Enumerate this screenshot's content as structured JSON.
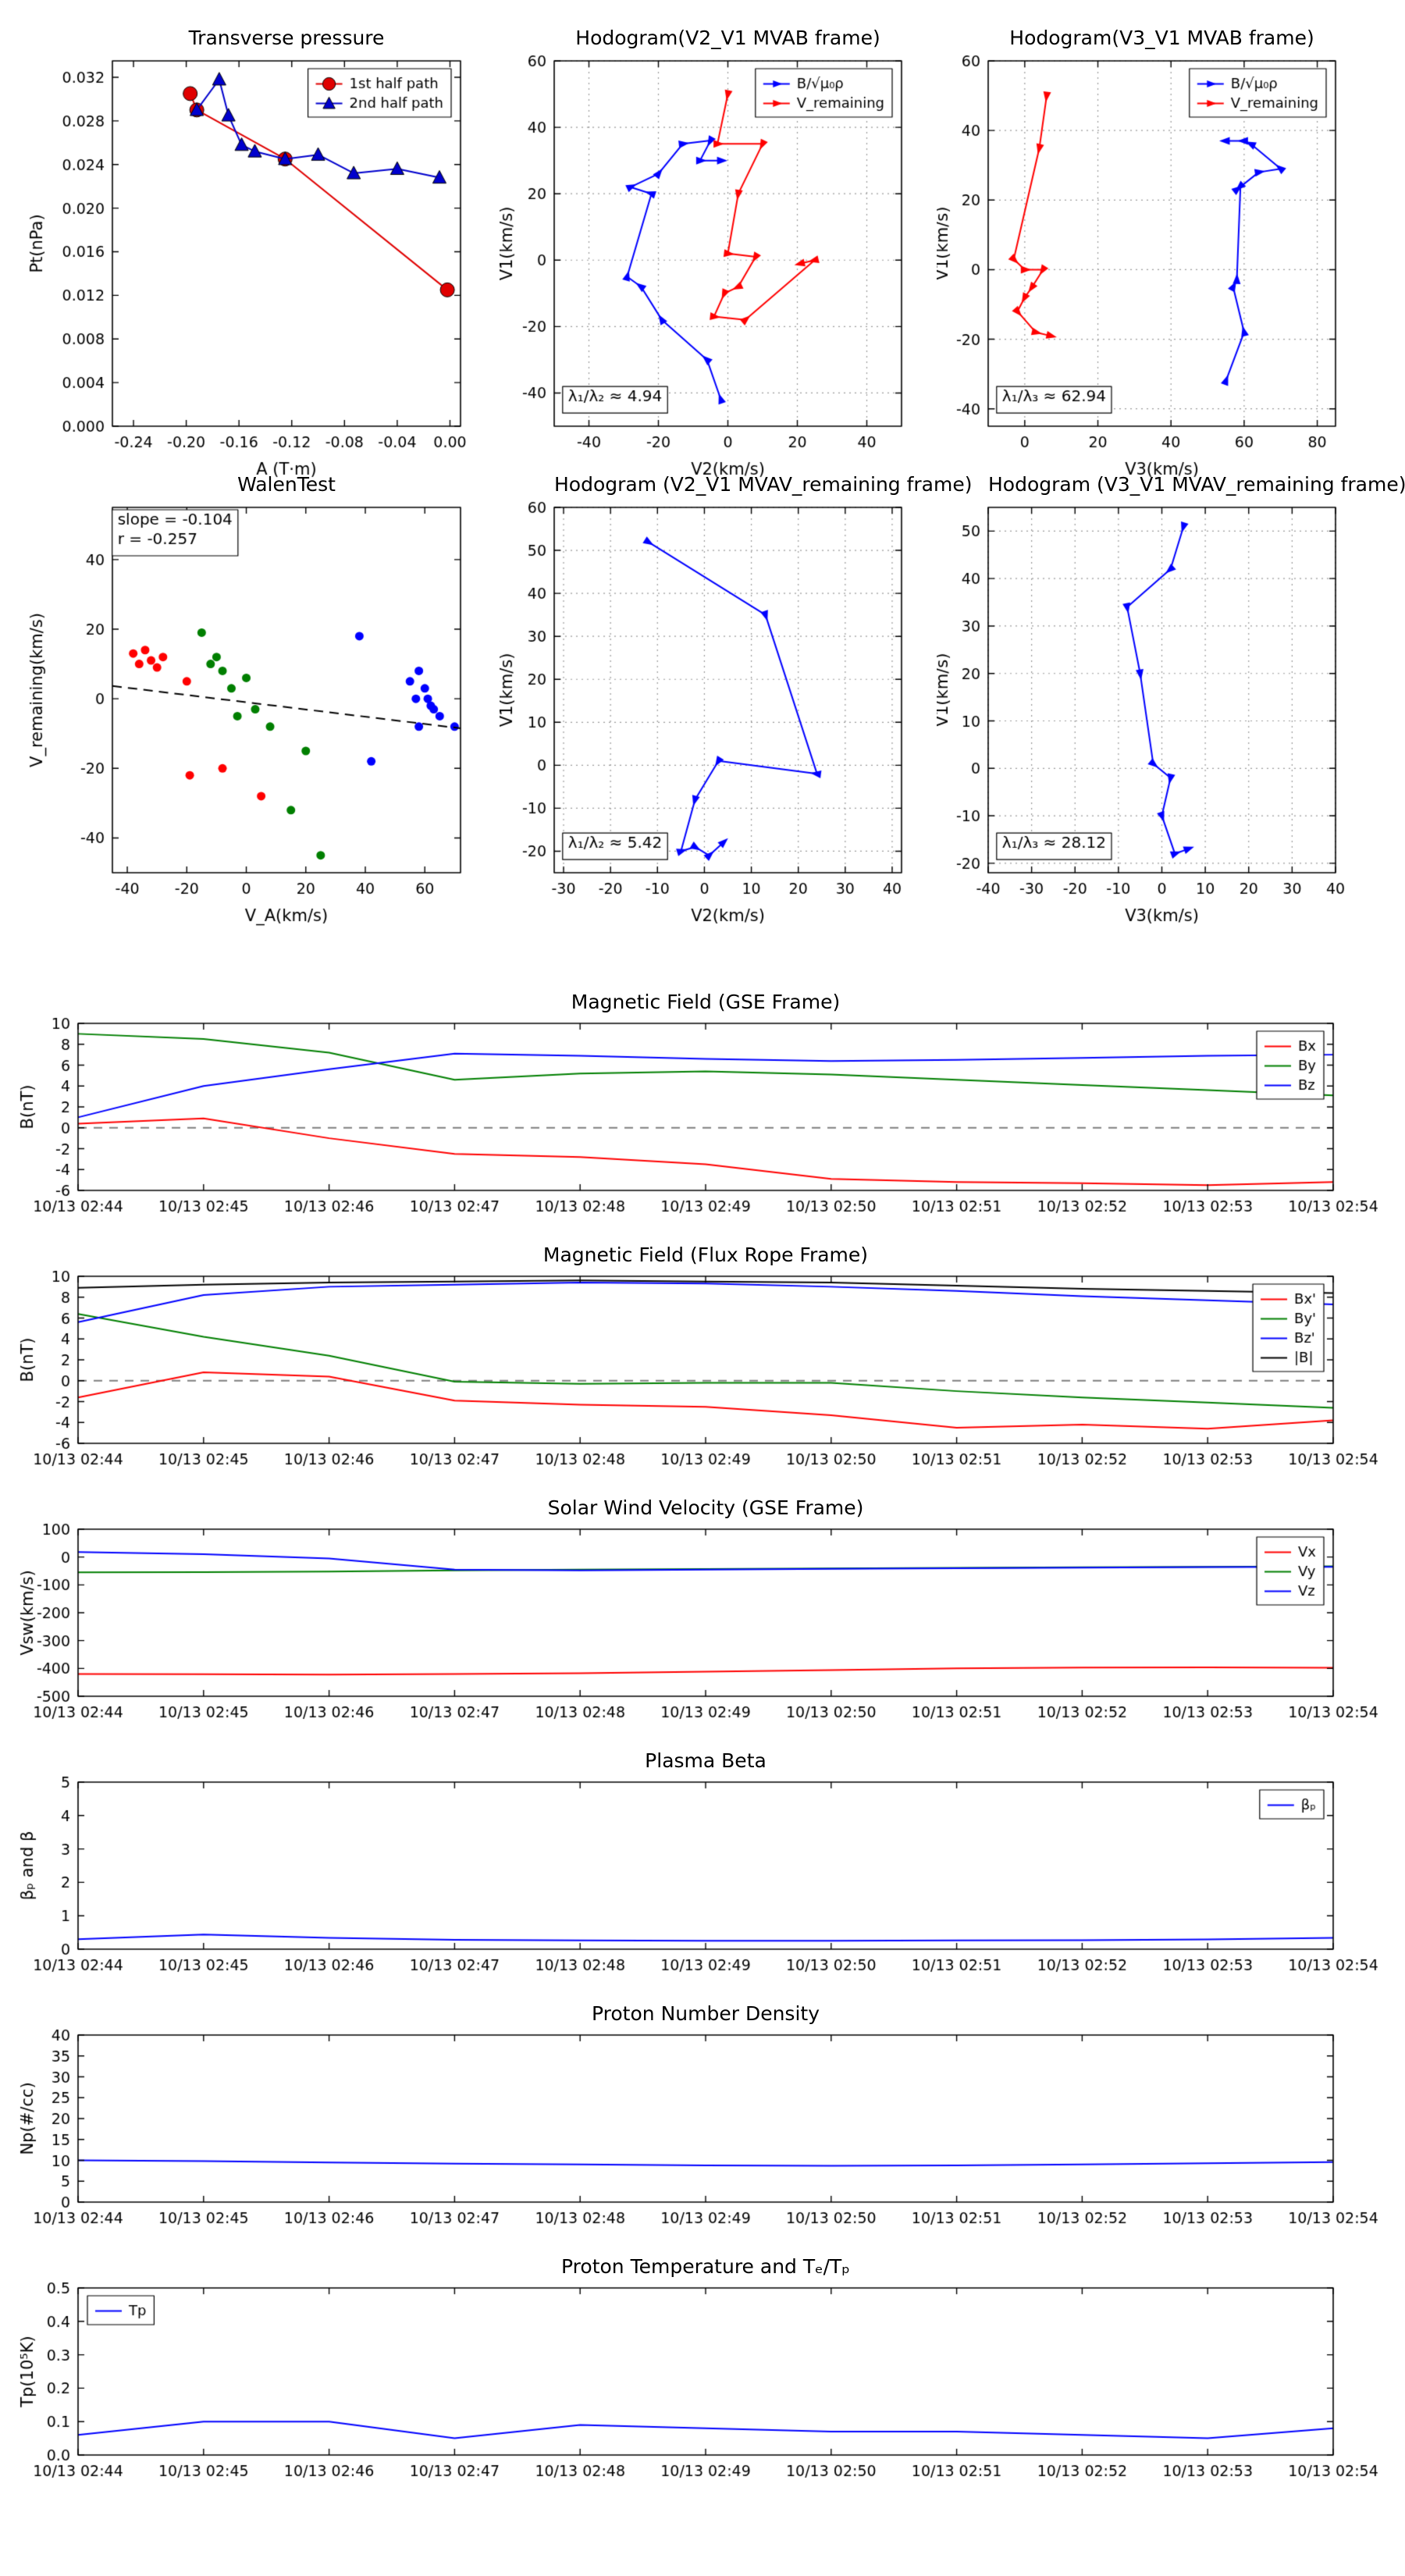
{
  "figure": {
    "background": "#ffffff"
  },
  "time_axis": {
    "tick_labels": [
      "10/13 02:44",
      "10/13 02:45",
      "10/13 02:46",
      "10/13 02:47",
      "10/13 02:48",
      "10/13 02:49",
      "10/13 02:50",
      "10/13 02:51",
      "10/13 02:52",
      "10/13 02:53",
      "10/13 02:54"
    ]
  },
  "chart_data": [
    {
      "id": "transverse-pressure",
      "type": "line",
      "title": "Transverse pressure",
      "xlabel": "A (T·m)",
      "ylabel": "Pt(nPa)",
      "xlim": [
        -0.256,
        0.008
      ],
      "ylim": [
        0,
        0.0335
      ],
      "xticks": [
        -0.24,
        -0.2,
        -0.16,
        -0.12,
        -0.08,
        -0.04,
        0
      ],
      "xtick_labels": [
        "-0.24",
        "-0.20",
        "-0.16",
        "-0.12",
        "-0.08",
        "-0.04",
        "0.00"
      ],
      "yticks": [
        0,
        0.004,
        0.008,
        0.012,
        0.016,
        0.02,
        0.024,
        0.028,
        0.032
      ],
      "ytick_labels": [
        "0.000",
        "0.004",
        "0.008",
        "0.012",
        "0.016",
        "0.020",
        "0.024",
        "0.028",
        "0.032"
      ],
      "grid": false,
      "legend": {
        "loc": "ne"
      },
      "series": [
        {
          "name": "1st half path",
          "color": "#e00000",
          "marker": "circle",
          "msize": 9,
          "x": [
            -0.197,
            -0.192,
            -0.125,
            -0.002
          ],
          "y": [
            0.0305,
            0.029,
            0.0245,
            0.0125
          ]
        },
        {
          "name": "2nd half path",
          "color": "#0000cd",
          "marker": "triangle",
          "msize": 9,
          "x": [
            -0.192,
            -0.175,
            -0.168,
            -0.158,
            -0.148,
            -0.125,
            -0.1,
            -0.073,
            -0.04,
            -0.008
          ],
          "y": [
            0.029,
            0.0318,
            0.0285,
            0.0258,
            0.0252,
            0.0245,
            0.0249,
            0.0232,
            0.0236,
            0.0228
          ]
        }
      ]
    },
    {
      "id": "hodogram-v2v1-mvab",
      "type": "line",
      "title": "Hodogram(V2_V1 MVAB frame)",
      "xlabel": "V2(km/s)",
      "ylabel": "V1(km/s)",
      "xlim": [
        -50,
        50
      ],
      "ylim": [
        -50,
        60
      ],
      "xticks": [
        -40,
        -20,
        0,
        20,
        40
      ],
      "yticks": [
        -40,
        -20,
        0,
        20,
        40,
        60
      ],
      "grid": true,
      "legend": {
        "loc": "ne"
      },
      "annotations": [
        {
          "text": "λ₁/λ₂ ≈ 4.94",
          "fx": 0.04,
          "fy": 0.9,
          "box": true
        }
      ],
      "series": [
        {
          "name": "B/√μ₀ρ",
          "color": "#0000ff",
          "marker": "arrow",
          "msize": 5,
          "x": [
            -2,
            -6,
            -19,
            -25,
            -29,
            -22,
            -28,
            -20,
            -13,
            -5,
            -8,
            -2
          ],
          "y": [
            -42,
            -30,
            -18,
            -8,
            -5,
            20,
            22,
            26,
            35,
            36,
            30,
            30
          ]
        },
        {
          "name": "V_remaining",
          "color": "#ff0000",
          "marker": "arrow",
          "msize": 5,
          "x": [
            0,
            -3,
            10,
            3,
            0,
            8,
            3,
            -1,
            -4,
            5,
            25,
            21
          ],
          "y": [
            50,
            35,
            35,
            20,
            2,
            1,
            -8,
            -10,
            -17,
            -18,
            0,
            -1
          ]
        }
      ]
    },
    {
      "id": "hodogram-v3v1-mvab",
      "type": "line",
      "title": "Hodogram(V3_V1 MVAB frame)",
      "xlabel": "V3(km/s)",
      "ylabel": "V1(km/s)",
      "xlim": [
        -10,
        85
      ],
      "ylim": [
        -45,
        60
      ],
      "xticks": [
        0,
        20,
        40,
        60,
        80
      ],
      "yticks": [
        -40,
        -20,
        0,
        20,
        40,
        60
      ],
      "grid": true,
      "legend": {
        "loc": "ne"
      },
      "annotations": [
        {
          "text": "λ₁/λ₃ ≈ 62.94",
          "fx": 0.04,
          "fy": 0.9,
          "box": true
        }
      ],
      "series": [
        {
          "name": "B/√μ₀ρ",
          "color": "#0000ff",
          "marker": "arrow",
          "msize": 5,
          "x": [
            55,
            60,
            57,
            58,
            59,
            58,
            64,
            70,
            62,
            60,
            55
          ],
          "y": [
            -32,
            -18,
            -5,
            -3,
            24,
            23,
            28,
            29,
            36,
            37,
            37
          ]
        },
        {
          "name": "V_remaining",
          "color": "#ff0000",
          "marker": "arrow",
          "msize": 5,
          "x": [
            6,
            4,
            -3,
            0,
            5,
            2,
            0,
            -2,
            3,
            7
          ],
          "y": [
            50,
            35,
            3,
            0,
            0,
            -5,
            -8,
            -12,
            -18,
            -19
          ]
        }
      ]
    },
    {
      "id": "walen-test",
      "type": "scatter",
      "title": "WalenTest",
      "xlabel": "V_A(km/s)",
      "ylabel": "V_remaining(km/s)",
      "xlim": [
        -45,
        72
      ],
      "ylim": [
        -50,
        55
      ],
      "xticks": [
        -40,
        -20,
        0,
        20,
        40,
        60
      ],
      "yticks": [
        -40,
        -20,
        0,
        20,
        40
      ],
      "grid": false,
      "annotations": [
        {
          "lines": [
            "slope = -0.104",
            "r = -0.257"
          ],
          "fx": 0.015,
          "fy": 0.015,
          "box": true
        }
      ],
      "series": [
        {
          "name": "cluster-1",
          "color": "#ff0000",
          "marker": "dot",
          "msize": 5.5,
          "line": false,
          "legend": false,
          "x": [
            -38,
            -36,
            -34,
            -32,
            -30,
            -28,
            -20,
            -19,
            -8,
            5
          ],
          "y": [
            13,
            10,
            14,
            11,
            9,
            12,
            5,
            -22,
            -20,
            -28
          ]
        },
        {
          "name": "cluster-2",
          "color": "#007f00",
          "marker": "dot",
          "msize": 5.5,
          "line": false,
          "legend": false,
          "x": [
            -15,
            -12,
            -10,
            -8,
            -5,
            -3,
            0,
            3,
            8,
            15,
            20,
            25
          ],
          "y": [
            19,
            10,
            12,
            8,
            3,
            -5,
            6,
            -3,
            -8,
            -32,
            -15,
            -45
          ]
        },
        {
          "name": "cluster-3",
          "color": "#0000ff",
          "marker": "dot",
          "msize": 5.5,
          "line": false,
          "legend": false,
          "x": [
            38,
            42,
            55,
            57,
            58,
            60,
            61,
            62,
            63,
            65,
            70,
            58
          ],
          "y": [
            18,
            -18,
            5,
            0,
            8,
            3,
            0,
            -2,
            -3,
            -5,
            -8,
            -8
          ]
        },
        {
          "name": "fit-line",
          "color": "#000000",
          "marker": "none",
          "dash": [
            12,
            8
          ],
          "legend": false,
          "x": [
            -45,
            72
          ],
          "y": [
            3.68,
            -8.49
          ]
        }
      ]
    },
    {
      "id": "hodogram-v2v1-mvav",
      "type": "line",
      "title": "Hodogram (V2_V1 MVAV_remaining frame)",
      "xlabel": "V2(km/s)",
      "ylabel": "V1(km/s)",
      "xlim": [
        -32,
        42
      ],
      "ylim": [
        -25,
        60
      ],
      "xticks": [
        -30,
        -20,
        -10,
        0,
        10,
        20,
        30,
        40
      ],
      "yticks": [
        -20,
        -10,
        0,
        10,
        20,
        30,
        40,
        50,
        60
      ],
      "grid": true,
      "annotations": [
        {
          "text": "λ₁/λ₂ ≈ 5.42",
          "fx": 0.04,
          "fy": 0.9,
          "box": true
        }
      ],
      "series": [
        {
          "name": "V",
          "color": "#0000ff",
          "marker": "arrow",
          "msize": 5,
          "legend": false,
          "x": [
            -12,
            13,
            24,
            3,
            -2,
            -5,
            -2,
            1,
            4
          ],
          "y": [
            52,
            35,
            -2,
            1,
            -8,
            -20,
            -19,
            -21,
            -18
          ]
        }
      ]
    },
    {
      "id": "hodogram-v3v1-mvav",
      "type": "line",
      "title": "Hodogram (V3_V1 MVAV_remaining frame)",
      "xlabel": "V3(km/s)",
      "ylabel": "V1(km/s)",
      "xlim": [
        -40,
        40
      ],
      "ylim": [
        -22,
        55
      ],
      "xticks": [
        -40,
        -30,
        -20,
        -10,
        0,
        10,
        20,
        30,
        40
      ],
      "yticks": [
        -20,
        -10,
        0,
        10,
        20,
        30,
        40,
        50
      ],
      "grid": true,
      "annotations": [
        {
          "text": "λ₁/λ₃ ≈ 28.12",
          "fx": 0.04,
          "fy": 0.9,
          "box": true
        }
      ],
      "series": [
        {
          "name": "V",
          "color": "#0000ff",
          "marker": "arrow",
          "msize": 5,
          "legend": false,
          "x": [
            5,
            2,
            -8,
            -5,
            -2,
            2,
            0,
            3,
            6
          ],
          "y": [
            51,
            42,
            34,
            20,
            1,
            -2,
            -10,
            -18,
            -17
          ]
        }
      ]
    },
    {
      "id": "magnetic-field-gse",
      "type": "line",
      "title": "Magnetic Field (GSE Frame)",
      "ylabel": "B(nT)",
      "time": true,
      "xlim": [
        0,
        10
      ],
      "ylim": [
        -6,
        10
      ],
      "xticks": [
        0,
        1,
        2,
        3,
        4,
        5,
        6,
        7,
        8,
        9,
        10
      ],
      "yticks": [
        -6,
        -4,
        -2,
        0,
        2,
        4,
        6,
        8,
        10
      ],
      "zeroline": true,
      "legend": {
        "loc": "ne"
      },
      "series": [
        {
          "name": "Bx",
          "color": "#ff0000",
          "y": [
            0.4,
            0.9,
            -1,
            -2.5,
            -2.8,
            -3.5,
            -4.9,
            -5.2,
            -5.3,
            -5.5,
            -5.2
          ]
        },
        {
          "name": "By",
          "color": "#007f00",
          "y": [
            9,
            8.5,
            7.2,
            4.6,
            5.2,
            5.4,
            5.1,
            4.6,
            4.1,
            3.6,
            3.1
          ]
        },
        {
          "name": "Bz",
          "color": "#0000ff",
          "y": [
            1,
            4,
            5.6,
            7.1,
            6.9,
            6.6,
            6.4,
            6.5,
            6.7,
            6.9,
            7
          ]
        }
      ]
    },
    {
      "id": "magnetic-field-flux-rope",
      "type": "line",
      "title": "Magnetic Field (Flux Rope Frame)",
      "ylabel": "B(nT)",
      "time": true,
      "xlim": [
        0,
        10
      ],
      "ylim": [
        -6,
        10
      ],
      "xticks": [
        0,
        1,
        2,
        3,
        4,
        5,
        6,
        7,
        8,
        9,
        10
      ],
      "yticks": [
        -6,
        -4,
        -2,
        0,
        2,
        4,
        6,
        8,
        10
      ],
      "zeroline": true,
      "legend": {
        "loc": "ne"
      },
      "series": [
        {
          "name": "Bx'",
          "color": "#ff0000",
          "y": [
            -1.6,
            0.8,
            0.4,
            -1.9,
            -2.3,
            -2.5,
            -3.3,
            -4.5,
            -4.2,
            -4.6,
            -3.8
          ]
        },
        {
          "name": "By'",
          "color": "#007f00",
          "y": [
            6.4,
            4.2,
            2.4,
            -0.1,
            -0.3,
            -0.2,
            -0.2,
            -1,
            -1.6,
            -2.1,
            -2.6
          ]
        },
        {
          "name": "Bz'",
          "color": "#0000ff",
          "y": [
            5.6,
            8.2,
            9,
            9.2,
            9.4,
            9.3,
            9,
            8.6,
            8.1,
            7.7,
            7.3
          ]
        },
        {
          "name": "|B|",
          "color": "#000000",
          "y": [
            8.9,
            9.2,
            9.4,
            9.5,
            9.6,
            9.5,
            9.4,
            9.1,
            8.8,
            8.6,
            8.4
          ]
        }
      ]
    },
    {
      "id": "solar-wind-velocity",
      "type": "line",
      "title": "Solar Wind Velocity (GSE Frame)",
      "ylabel": "Vsw(km/s)",
      "time": true,
      "xlim": [
        0,
        10
      ],
      "ylim": [
        -500,
        100
      ],
      "xticks": [
        0,
        1,
        2,
        3,
        4,
        5,
        6,
        7,
        8,
        9,
        10
      ],
      "yticks": [
        -500,
        -400,
        -300,
        -200,
        -100,
        0,
        100
      ],
      "legend": {
        "loc": "ne"
      },
      "series": [
        {
          "name": "Vx",
          "color": "#ff0000",
          "y": [
            -420,
            -421,
            -422,
            -420,
            -417,
            -412,
            -406,
            -400,
            -397,
            -396,
            -398
          ]
        },
        {
          "name": "Vy",
          "color": "#007f00",
          "y": [
            -55,
            -54,
            -52,
            -48,
            -45,
            -43,
            -41,
            -39,
            -37,
            -35,
            -33
          ]
        },
        {
          "name": "Vz",
          "color": "#0000ff",
          "y": [
            18,
            10,
            -5,
            -45,
            -48,
            -45,
            -42,
            -40,
            -38,
            -36,
            -35
          ]
        }
      ]
    },
    {
      "id": "plasma-beta",
      "type": "line",
      "title": "Plasma Beta",
      "ylabel": "βₚ and β",
      "time": true,
      "xlim": [
        0,
        10
      ],
      "ylim": [
        0,
        5
      ],
      "xticks": [
        0,
        1,
        2,
        3,
        4,
        5,
        6,
        7,
        8,
        9,
        10
      ],
      "yticks": [
        0,
        1,
        2,
        3,
        4,
        5
      ],
      "legend": {
        "loc": "ne"
      },
      "series": [
        {
          "name": "βₚ",
          "color": "#0000ff",
          "y": [
            0.3,
            0.44,
            0.34,
            0.28,
            0.26,
            0.25,
            0.25,
            0.26,
            0.27,
            0.29,
            0.34
          ]
        }
      ]
    },
    {
      "id": "proton-number-density",
      "type": "line",
      "title": "Proton Number Density",
      "ylabel": "Np(#/cc)",
      "time": true,
      "xlim": [
        0,
        10
      ],
      "ylim": [
        0,
        40
      ],
      "xticks": [
        0,
        1,
        2,
        3,
        4,
        5,
        6,
        7,
        8,
        9,
        10
      ],
      "yticks": [
        0,
        5,
        10,
        15,
        20,
        25,
        30,
        35,
        40
      ],
      "series": [
        {
          "name": "Np",
          "color": "#0000ff",
          "legend": false,
          "y": [
            10,
            9.8,
            9.5,
            9.2,
            9,
            8.8,
            8.7,
            8.8,
            9,
            9.3,
            9.6
          ]
        }
      ]
    },
    {
      "id": "proton-temperature",
      "type": "line",
      "title": "Proton Temperature and Tₑ/Tₚ",
      "ylabel": "Tp(10⁵K)",
      "time": true,
      "xlim": [
        0,
        10
      ],
      "ylim": [
        0,
        0.5
      ],
      "xticks": [
        0,
        1,
        2,
        3,
        4,
        5,
        6,
        7,
        8,
        9,
        10
      ],
      "yticks": [
        0,
        0.1,
        0.2,
        0.3,
        0.4,
        0.5
      ],
      "ytick_labels": [
        "0.0",
        "0.1",
        "0.2",
        "0.3",
        "0.4",
        "0.5"
      ],
      "legend": {
        "loc": "nw"
      },
      "series": [
        {
          "name": "Tp",
          "color": "#0000ff",
          "y": [
            0.06,
            0.1,
            0.1,
            0.05,
            0.09,
            0.08,
            0.07,
            0.07,
            0.06,
            0.05,
            0.08
          ]
        }
      ]
    }
  ]
}
